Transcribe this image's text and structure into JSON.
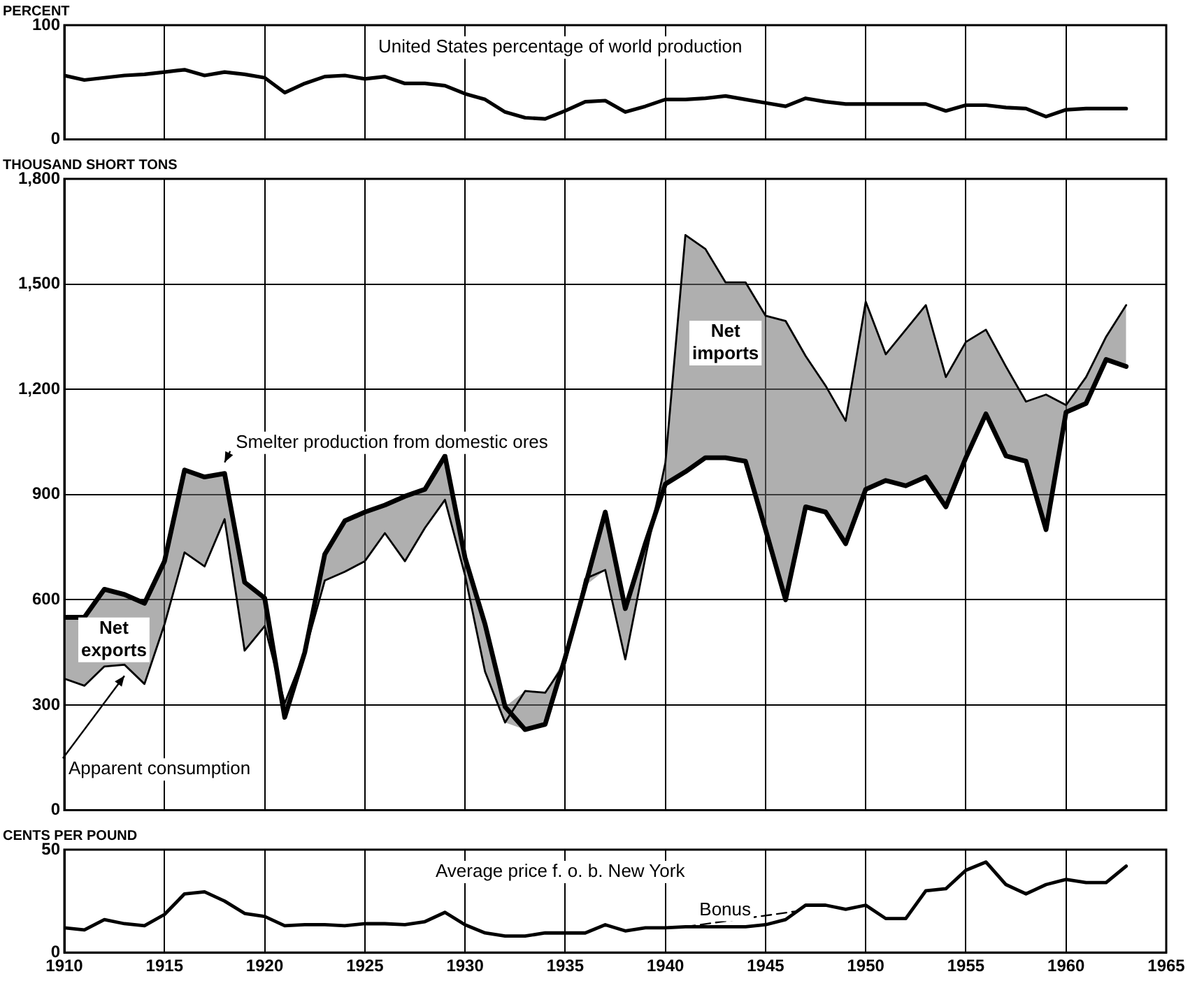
{
  "chart_data": [
    {
      "type": "line",
      "title": "United States percentage of world production",
      "ylabel": "PERCENT",
      "x": [
        1910,
        1911,
        1912,
        1913,
        1914,
        1915,
        1916,
        1917,
        1918,
        1919,
        1920,
        1921,
        1922,
        1923,
        1924,
        1925,
        1926,
        1927,
        1928,
        1929,
        1930,
        1931,
        1932,
        1933,
        1934,
        1935,
        1936,
        1937,
        1938,
        1939,
        1940,
        1941,
        1942,
        1943,
        1944,
        1945,
        1946,
        1947,
        1948,
        1949,
        1950,
        1951,
        1952,
        1953,
        1954,
        1955,
        1956,
        1957,
        1958,
        1959,
        1960,
        1961,
        1962,
        1963
      ],
      "series": [
        {
          "color": "#000000",
          "values": [
            56,
            52,
            54,
            56,
            57,
            59,
            61,
            56,
            59,
            57,
            54,
            41,
            49,
            55,
            56,
            53,
            55,
            49,
            49,
            47,
            40,
            35,
            24,
            19,
            18,
            25,
            33,
            34,
            24,
            29,
            35,
            35,
            36,
            38,
            35,
            32,
            29,
            36,
            33,
            31,
            31,
            31,
            31,
            31,
            25,
            30,
            30,
            28,
            27,
            20,
            26,
            27,
            27,
            27
          ]
        }
      ],
      "xlim": [
        1910,
        1965
      ],
      "xticks": [
        1910,
        1915,
        1920,
        1925,
        1930,
        1935,
        1940,
        1945,
        1950,
        1955,
        1960,
        1965
      ],
      "ylim": [
        0,
        100
      ],
      "yticks": [
        0,
        100
      ],
      "tick_labels": "y",
      "grid": "x",
      "legend": false,
      "marker": "none"
    },
    {
      "type": "line",
      "ylabel": "THOUSAND SHORT TONS",
      "x": [
        1910,
        1911,
        1912,
        1913,
        1914,
        1915,
        1916,
        1917,
        1918,
        1919,
        1920,
        1921,
        1922,
        1923,
        1924,
        1925,
        1926,
        1927,
        1928,
        1929,
        1930,
        1931,
        1932,
        1933,
        1934,
        1935,
        1936,
        1937,
        1938,
        1939,
        1940,
        1941,
        1942,
        1943,
        1944,
        1945,
        1946,
        1947,
        1948,
        1949,
        1950,
        1951,
        1952,
        1953,
        1954,
        1955,
        1956,
        1957,
        1958,
        1959,
        1960,
        1961,
        1962,
        1963
      ],
      "series": [
        {
          "name": "Smelter production from domestic ores",
          "color": "#000000",
          "values": [
            550,
            550,
            630,
            615,
            590,
            710,
            970,
            950,
            960,
            650,
            605,
            265,
            450,
            730,
            825,
            850,
            870,
            895,
            915,
            1010,
            720,
            530,
            295,
            230,
            245,
            435,
            640,
            850,
            575,
            760,
            930,
            965,
            1005,
            1005,
            995,
            800,
            600,
            865,
            850,
            760,
            915,
            940,
            925,
            950,
            865,
            1005,
            1130,
            1010,
            995,
            800,
            1135,
            1160,
            1285,
            1265
          ]
        },
        {
          "name": "Apparent consumption",
          "color": "#000000",
          "values": [
            375,
            355,
            410,
            415,
            360,
            530,
            735,
            695,
            830,
            455,
            525,
            305,
            450,
            655,
            680,
            710,
            790,
            710,
            805,
            885,
            670,
            395,
            250,
            340,
            335,
            420,
            660,
            685,
            430,
            720,
            990,
            1640,
            1600,
            1505,
            1505,
            1410,
            1395,
            1295,
            1210,
            1110,
            1450,
            1300,
            1370,
            1440,
            1235,
            1335,
            1370,
            1265,
            1165,
            1185,
            1155,
            1235,
            1350,
            1440
          ],
          "lower": [
            375,
            355,
            410,
            415,
            360,
            530,
            735,
            695,
            830,
            455,
            525,
            265,
            450,
            655,
            680,
            710,
            790,
            710,
            805,
            885,
            670,
            395,
            250,
            230,
            245,
            420,
            640,
            685,
            430,
            720,
            930,
            965,
            1005,
            1005,
            995,
            800,
            600,
            865,
            850,
            760,
            915,
            940,
            925,
            950,
            865,
            1005,
            1130,
            1010,
            995,
            800,
            1135,
            1160,
            1285,
            1265
          ],
          "upper": [
            550,
            550,
            630,
            615,
            590,
            710,
            970,
            950,
            960,
            650,
            605,
            305,
            450,
            730,
            825,
            850,
            870,
            895,
            915,
            1010,
            720,
            530,
            295,
            340,
            335,
            435,
            660,
            850,
            575,
            760,
            990,
            1640,
            1600,
            1505,
            1505,
            1410,
            1395,
            1295,
            1210,
            1110,
            1450,
            1300,
            1370,
            1440,
            1235,
            1335,
            1370,
            1265,
            1165,
            1185,
            1155,
            1235,
            1350,
            1440
          ]
        }
      ],
      "annotations": [
        "Net exports",
        "Net imports"
      ],
      "xlim": [
        1910,
        1965
      ],
      "xticks": [
        1910,
        1915,
        1920,
        1925,
        1930,
        1935,
        1940,
        1945,
        1950,
        1955,
        1960,
        1965
      ],
      "ylim": [
        0,
        1800
      ],
      "yticks": [
        0,
        300,
        600,
        900,
        {
          "value": 1200,
          "label": "1,200"
        },
        {
          "value": 1500,
          "label": "1,500"
        },
        {
          "value": 1800,
          "label": "1,800"
        }
      ],
      "tick_labels": "y",
      "grid": true,
      "legend": false,
      "marker": "none"
    },
    {
      "type": "line",
      "title": "Average price f. o. b. New York",
      "ylabel": "CENTS PER POUND",
      "x": [
        1910,
        1911,
        1912,
        1913,
        1914,
        1915,
        1916,
        1917,
        1918,
        1919,
        1920,
        1921,
        1922,
        1923,
        1924,
        1925,
        1926,
        1927,
        1928,
        1929,
        1930,
        1931,
        1932,
        1933,
        1934,
        1935,
        1936,
        1937,
        1938,
        1939,
        1940,
        1941,
        1942,
        1943,
        1944,
        1945,
        1946,
        1947,
        1948,
        1949,
        1950,
        1951,
        1952,
        1953,
        1954,
        1955,
        1956,
        1957,
        1958,
        1959,
        1960,
        1961,
        1962,
        1963
      ],
      "series": [
        {
          "color": "#000000",
          "values": [
            12,
            11,
            16,
            14,
            13,
            18.5,
            28.5,
            29.5,
            25,
            19,
            17.5,
            13,
            13.5,
            13.5,
            13,
            14,
            14,
            13.5,
            15,
            19.5,
            13.5,
            9.5,
            8,
            8,
            9.5,
            9.5,
            9.5,
            13.5,
            10.5,
            12,
            12,
            12.5,
            12.5,
            12.5,
            12.5,
            13.5,
            16,
            23,
            23,
            21,
            23,
            16.5,
            16.5,
            30,
            31,
            40,
            44,
            33,
            28.5,
            33,
            35.5,
            34,
            34,
            42
          ]
        },
        {
          "name": "Bonus",
          "color": "#000000",
          "line_style": "dashed",
          "x": [
            1941,
            1946.5
          ],
          "values": [
            12.5,
            20
          ]
        }
      ],
      "xlim": [
        1910,
        1965
      ],
      "xticks": [
        1910,
        1915,
        1920,
        1925,
        1930,
        1935,
        1940,
        1945,
        1950,
        1955,
        1960,
        1965
      ],
      "ylim": [
        0,
        50
      ],
      "yticks": [
        0,
        50
      ],
      "grid": "x",
      "legend": false,
      "marker": "none"
    }
  ]
}
